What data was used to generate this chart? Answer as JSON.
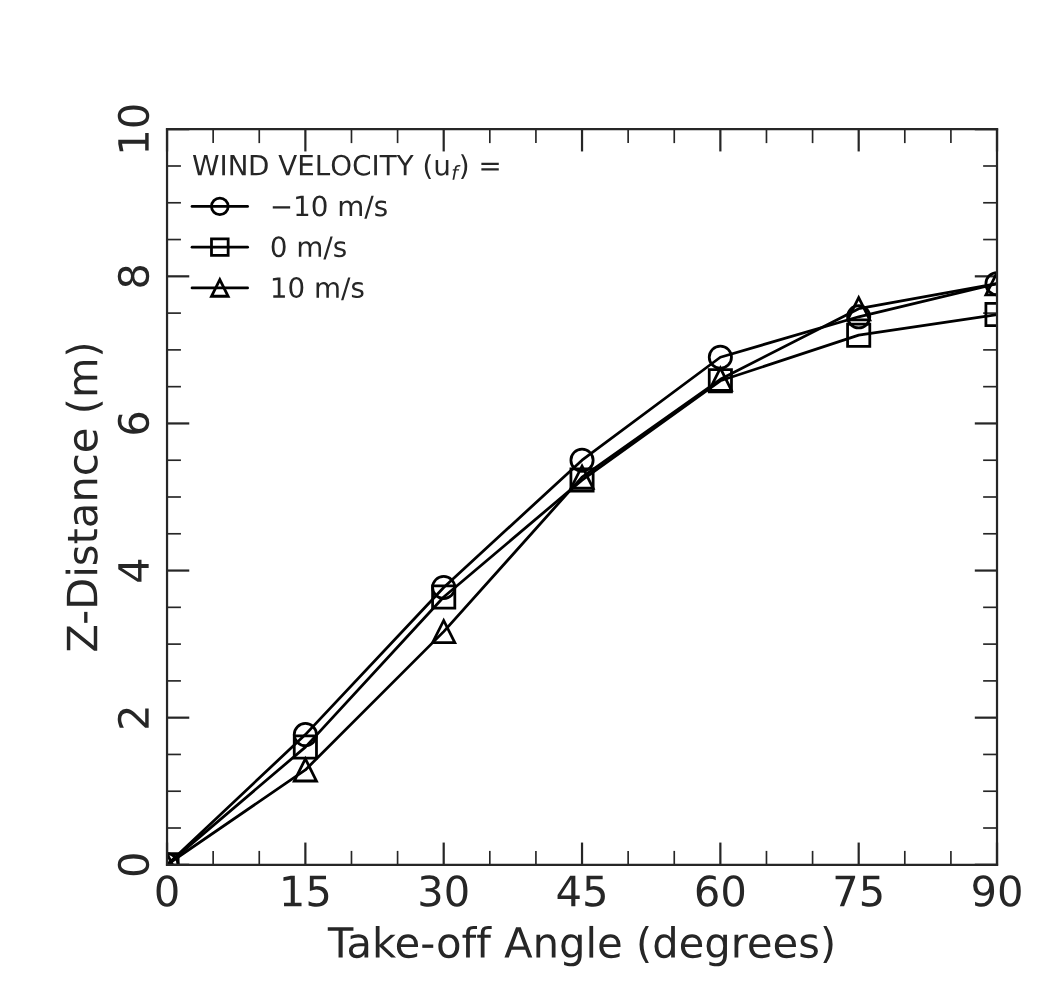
{
  "chart_data": {
    "type": "line",
    "xlabel": "Take-off Angle (degrees)",
    "ylabel": "Z-Distance (m)",
    "legend_title": "WIND VELOCITY (u$_{f}$) =",
    "x": [
      0,
      15,
      30,
      45,
      60,
      75,
      90
    ],
    "series": [
      {
        "name": "−10 m/s",
        "color": "#000000",
        "marker": "circle",
        "values": [
          0,
          1.77,
          3.77,
          5.5,
          6.9,
          7.45,
          7.9
        ]
      },
      {
        "name": "0 m/s",
        "color": "#000000",
        "marker": "square",
        "values": [
          0,
          1.6,
          3.64,
          5.23,
          6.58,
          7.2,
          7.48
        ]
      },
      {
        "name": "10 m/s",
        "color": "#000000",
        "marker": "triangle",
        "values": [
          0,
          1.29,
          3.17,
          5.27,
          6.6,
          7.56,
          7.9
        ]
      }
    ],
    "xlim": [
      0,
      90
    ],
    "xticks": [
      0,
      15,
      30,
      45,
      60,
      75,
      90
    ],
    "ylim": [
      0,
      10
    ],
    "yticks": [
      0,
      2,
      4,
      6,
      8,
      10
    ],
    "grid": false,
    "legend": "top left",
    "line_style": "solid"
  }
}
